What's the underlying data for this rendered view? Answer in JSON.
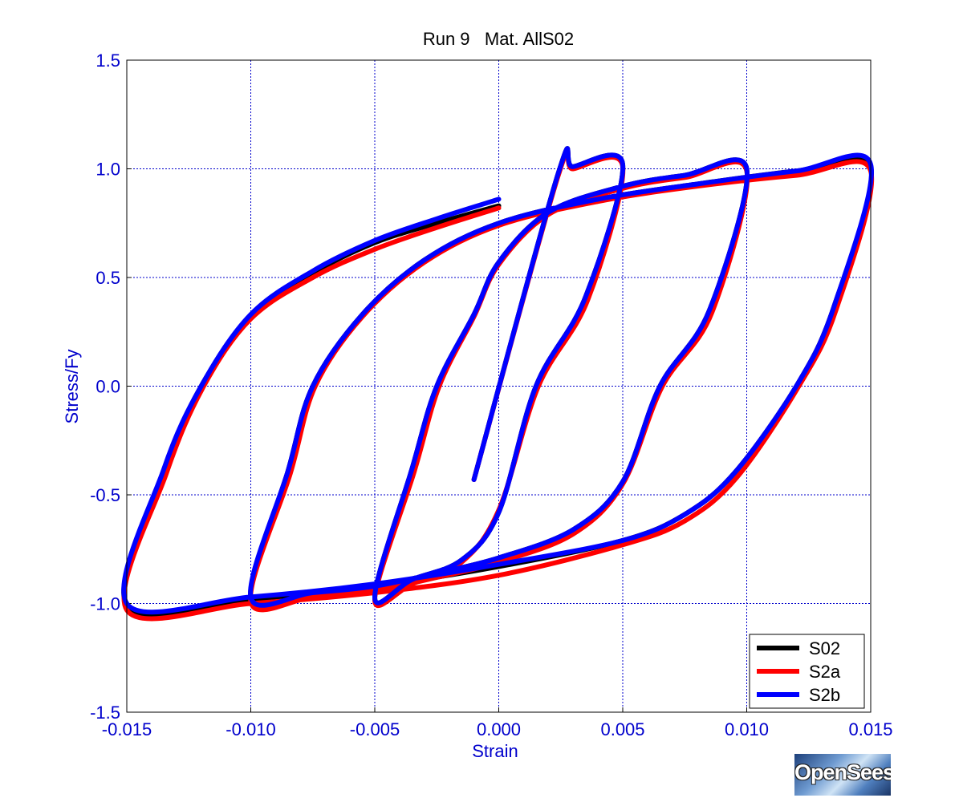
{
  "chart_data": {
    "type": "line",
    "title": "Run 9   Mat. AllS02",
    "xlabel": "Strain",
    "ylabel": "Stress/Fy",
    "xlim": [
      -0.015,
      0.015
    ],
    "ylim": [
      -1.5,
      1.5
    ],
    "xticks": [
      "-0.015",
      "-0.010",
      "-0.005",
      "0.000",
      "0.005",
      "0.010",
      "0.015"
    ],
    "yticks": [
      "1.5",
      "1.0",
      "0.5",
      "0.0",
      "-0.5",
      "-1.0",
      "-1.5"
    ],
    "grid": true,
    "legend_position": "bottom-right",
    "series": [
      {
        "name": "S02",
        "color": "#000000",
        "points": [
          [
            -0.001,
            -0.43
          ],
          [
            0.0024,
            0.98
          ],
          [
            0.003,
            1.01
          ],
          [
            0.005,
            1.02
          ],
          [
            0.0035,
            0.41
          ],
          [
            0.0015,
            0.0
          ],
          [
            0.0,
            -0.58
          ],
          [
            -0.0015,
            -0.8
          ],
          [
            -0.0035,
            -0.89
          ],
          [
            -0.005,
            -0.97
          ],
          [
            -0.0035,
            -0.38
          ],
          [
            -0.0025,
            0.0
          ],
          [
            -0.001,
            0.33
          ],
          [
            0.0,
            0.57
          ],
          [
            0.002,
            0.8
          ],
          [
            0.005,
            0.92
          ],
          [
            0.0075,
            0.97
          ],
          [
            0.01,
            1.0
          ],
          [
            0.0085,
            0.35
          ],
          [
            0.0065,
            0.0
          ],
          [
            0.005,
            -0.44
          ],
          [
            0.003,
            -0.66
          ],
          [
            0.0,
            -0.79
          ],
          [
            -0.0025,
            -0.86
          ],
          [
            -0.005,
            -0.92
          ],
          [
            -0.0075,
            -0.95
          ],
          [
            -0.01,
            -0.98
          ],
          [
            -0.0085,
            -0.39
          ],
          [
            -0.0075,
            0.0
          ],
          [
            -0.0055,
            0.33
          ],
          [
            -0.003,
            0.58
          ],
          [
            0.0,
            0.75
          ],
          [
            0.004,
            0.86
          ],
          [
            0.008,
            0.93
          ],
          [
            0.012,
            0.99
          ],
          [
            0.015,
            1.01
          ],
          [
            0.0135,
            0.36
          ],
          [
            0.012,
            0.0
          ],
          [
            0.0095,
            -0.4
          ],
          [
            0.0075,
            -0.59
          ],
          [
            0.005,
            -0.71
          ],
          [
            0.0,
            -0.83
          ],
          [
            -0.005,
            -0.92
          ],
          [
            -0.01,
            -0.98
          ],
          [
            -0.015,
            -1.01
          ],
          [
            -0.0135,
            -0.39
          ],
          [
            -0.012,
            0.0
          ],
          [
            -0.01,
            0.32
          ],
          [
            -0.0075,
            0.52
          ],
          [
            -0.005,
            0.66
          ],
          [
            -0.0025,
            0.75
          ],
          [
            0.0,
            0.83
          ]
        ]
      },
      {
        "name": "S2a",
        "color": "#ff0000",
        "points": [
          [
            -0.001,
            -0.43
          ],
          [
            0.0024,
            0.97
          ],
          [
            0.003,
            1.0
          ],
          [
            0.005,
            1.01
          ],
          [
            0.0036,
            0.4
          ],
          [
            0.0016,
            0.0
          ],
          [
            0.0,
            -0.57
          ],
          [
            -0.0015,
            -0.81
          ],
          [
            -0.0035,
            -0.91
          ],
          [
            -0.005,
            -0.98
          ],
          [
            -0.0034,
            -0.39
          ],
          [
            -0.0024,
            0.0
          ],
          [
            -0.001,
            0.32
          ],
          [
            0.0,
            0.56
          ],
          [
            0.002,
            0.79
          ],
          [
            0.005,
            0.91
          ],
          [
            0.0075,
            0.96
          ],
          [
            0.01,
            0.99
          ],
          [
            0.0086,
            0.34
          ],
          [
            0.0066,
            0.0
          ],
          [
            0.005,
            -0.45
          ],
          [
            0.003,
            -0.68
          ],
          [
            0.0,
            -0.81
          ],
          [
            -0.0025,
            -0.88
          ],
          [
            -0.005,
            -0.94
          ],
          [
            -0.0075,
            -0.97
          ],
          [
            -0.01,
            -0.99
          ],
          [
            -0.0084,
            -0.4
          ],
          [
            -0.0074,
            0.0
          ],
          [
            -0.0055,
            0.32
          ],
          [
            -0.003,
            0.57
          ],
          [
            0.0,
            0.74
          ],
          [
            0.004,
            0.85
          ],
          [
            0.008,
            0.92
          ],
          [
            0.012,
            0.97
          ],
          [
            0.015,
            0.99
          ],
          [
            0.0136,
            0.35
          ],
          [
            0.0121,
            0.0
          ],
          [
            0.0096,
            -0.42
          ],
          [
            0.0075,
            -0.62
          ],
          [
            0.005,
            -0.73
          ],
          [
            0.0,
            -0.87
          ],
          [
            -0.005,
            -0.95
          ],
          [
            -0.01,
            -1.0
          ],
          [
            -0.015,
            -1.03
          ],
          [
            -0.0134,
            -0.4
          ],
          [
            -0.0119,
            0.0
          ],
          [
            -0.01,
            0.31
          ],
          [
            -0.0075,
            0.5
          ],
          [
            -0.005,
            0.63
          ],
          [
            -0.0025,
            0.73
          ],
          [
            0.0,
            0.82
          ]
        ]
      },
      {
        "name": "S2b",
        "color": "#0000ff",
        "points": [
          [
            -0.001,
            -0.43
          ],
          [
            0.0024,
            0.98
          ],
          [
            0.003,
            1.01
          ],
          [
            0.005,
            1.02
          ],
          [
            0.0035,
            0.41
          ],
          [
            0.0015,
            0.0
          ],
          [
            0.0,
            -0.58
          ],
          [
            -0.0015,
            -0.8
          ],
          [
            -0.0035,
            -0.89
          ],
          [
            -0.005,
            -0.97
          ],
          [
            -0.0035,
            -0.38
          ],
          [
            -0.0025,
            0.0
          ],
          [
            -0.001,
            0.33
          ],
          [
            0.0,
            0.57
          ],
          [
            0.002,
            0.8
          ],
          [
            0.005,
            0.92
          ],
          [
            0.0075,
            0.97
          ],
          [
            0.01,
            1.0
          ],
          [
            0.0085,
            0.35
          ],
          [
            0.0065,
            0.0
          ],
          [
            0.005,
            -0.44
          ],
          [
            0.003,
            -0.66
          ],
          [
            0.0,
            -0.79
          ],
          [
            -0.0025,
            -0.86
          ],
          [
            -0.005,
            -0.92
          ],
          [
            -0.0075,
            -0.95
          ],
          [
            -0.01,
            -0.97
          ],
          [
            -0.0085,
            -0.39
          ],
          [
            -0.0075,
            0.0
          ],
          [
            -0.0055,
            0.33
          ],
          [
            -0.003,
            0.58
          ],
          [
            0.0,
            0.75
          ],
          [
            0.004,
            0.86
          ],
          [
            0.008,
            0.93
          ],
          [
            0.012,
            0.99
          ],
          [
            0.015,
            1.02
          ],
          [
            0.0135,
            0.36
          ],
          [
            0.012,
            0.0
          ],
          [
            0.0095,
            -0.4
          ],
          [
            0.0075,
            -0.59
          ],
          [
            0.005,
            -0.71
          ],
          [
            0.0,
            -0.82
          ],
          [
            -0.005,
            -0.91
          ],
          [
            -0.01,
            -0.97
          ],
          [
            -0.015,
            -1.0
          ],
          [
            -0.0135,
            -0.38
          ],
          [
            -0.012,
            0.0
          ],
          [
            -0.01,
            0.33
          ],
          [
            -0.0075,
            0.53
          ],
          [
            -0.005,
            0.67
          ],
          [
            -0.0025,
            0.77
          ],
          [
            0.0,
            0.86
          ]
        ]
      }
    ]
  },
  "logo": {
    "text": "OpenSees"
  }
}
